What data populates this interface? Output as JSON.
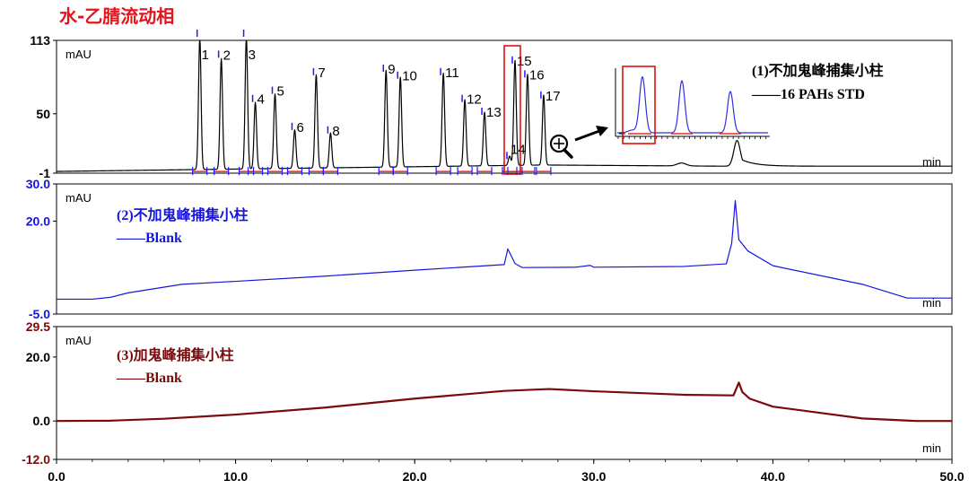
{
  "title": "水-乙腈流动相",
  "colors": {
    "black": "#000000",
    "blue": "#1515e0",
    "red": "#7a0a0a",
    "marker": "#1a1aff",
    "baseline": "#e00000",
    "highlight": "#e00000",
    "title": "#e8121b"
  },
  "x_axis": {
    "min": 0,
    "max": 50,
    "ticks": [
      0,
      10,
      20,
      30,
      40,
      50
    ],
    "labels": [
      "0.0",
      "10.0",
      "20.0",
      "30.0",
      "40.0",
      "50.0"
    ]
  },
  "icons": {
    "zoom": "magnifier-plus-icon",
    "arrow": "arrow-icon"
  },
  "chart_data": [
    {
      "id": "panel1",
      "type": "line",
      "color": "black",
      "unit_label": "mAU",
      "x_unit_label": "min",
      "ylim": [
        -1,
        113
      ],
      "yticks": [
        -1,
        50,
        113
      ],
      "ytick_labels": [
        "-1",
        "50",
        "113"
      ],
      "legend_title": "(1)不加鬼峰捕集小柱",
      "legend_label": "——16 PAHs STD",
      "baseline": {
        "start": 0.5,
        "end_at_peak17": 6,
        "tail": 5
      },
      "peaks": [
        {
          "label": "1",
          "x": 8.0,
          "h": 113
        },
        {
          "label": "2",
          "x": 9.2,
          "h": 95
        },
        {
          "label": "3",
          "x": 10.6,
          "h": 113
        },
        {
          "label": "4",
          "x": 11.1,
          "h": 57
        },
        {
          "label": "5",
          "x": 12.2,
          "h": 64
        },
        {
          "label": "6",
          "x": 13.3,
          "h": 33
        },
        {
          "label": "7",
          "x": 14.5,
          "h": 80
        },
        {
          "label": "8",
          "x": 15.3,
          "h": 30
        },
        {
          "label": "9",
          "x": 18.4,
          "h": 83
        },
        {
          "label": "10",
          "x": 19.2,
          "h": 77
        },
        {
          "label": "11",
          "x": 21.6,
          "h": 80
        },
        {
          "label": "12",
          "x": 22.8,
          "h": 57
        },
        {
          "label": "13",
          "x": 23.9,
          "h": 46
        },
        {
          "label": "14",
          "x": 25.3,
          "h": 8
        },
        {
          "label": "15",
          "x": 25.6,
          "h": 90
        },
        {
          "label": "16",
          "x": 26.3,
          "h": 78
        },
        {
          "label": "17",
          "x": 27.2,
          "h": 60
        }
      ],
      "extra_peaks": [
        {
          "x": 34.9,
          "h": 2.5,
          "w": 0.25
        },
        {
          "x": 38.0,
          "h": 22,
          "w": 0.18
        }
      ],
      "highlight_range": [
        25.0,
        25.9
      ]
    },
    {
      "id": "panel2",
      "type": "line",
      "color": "blue",
      "unit_label": "mAU",
      "x_unit_label": "min",
      "ylim": [
        -5.0,
        30.0
      ],
      "yticks": [
        -5.0,
        20.0,
        30.0
      ],
      "ytick_labels": [
        "-5.0",
        "20.0",
        "30.0"
      ],
      "legend_title": "(2)不加鬼峰捕集小柱",
      "legend_label": "——Blank",
      "x": [
        0,
        2,
        3,
        4,
        7,
        10,
        15,
        20,
        24,
        25,
        25.2,
        25.6,
        26,
        29,
        29.8,
        30,
        35,
        37.4,
        37.7,
        37.9,
        38.1,
        38.6,
        40,
        45,
        47.5,
        50
      ],
      "y": [
        -1,
        -1,
        -0.5,
        0.7,
        3.0,
        3.8,
        5.2,
        6.8,
        8.0,
        8.3,
        12.5,
        8.6,
        7.5,
        7.6,
        8.1,
        7.6,
        7.8,
        8.5,
        14,
        25.5,
        15,
        12,
        8.0,
        3.0,
        -0.7,
        -0.7
      ]
    },
    {
      "id": "panel3",
      "type": "line",
      "color": "red",
      "unit_label": "mAU",
      "x_unit_label": "min",
      "ylim": [
        -12.0,
        29.5
      ],
      "yticks": [
        -12.0,
        0.0,
        20.0,
        29.5
      ],
      "ytick_labels": [
        "-12.0",
        "0.0",
        "20.0",
        "29.5"
      ],
      "legend_title": "(3)加鬼峰捕集小柱",
      "legend_label": "——Blank",
      "x": [
        0,
        3,
        6,
        10,
        15,
        20,
        25,
        27.5,
        30,
        35,
        37.8,
        38.1,
        38.3,
        38.7,
        40,
        45,
        48,
        50
      ],
      "y": [
        0,
        0.1,
        0.7,
        2.0,
        4.2,
        7.0,
        9.4,
        10.0,
        9.3,
        8.2,
        8.0,
        12,
        9.0,
        7.0,
        4.5,
        0.8,
        0.0,
        0.0
      ]
    }
  ]
}
